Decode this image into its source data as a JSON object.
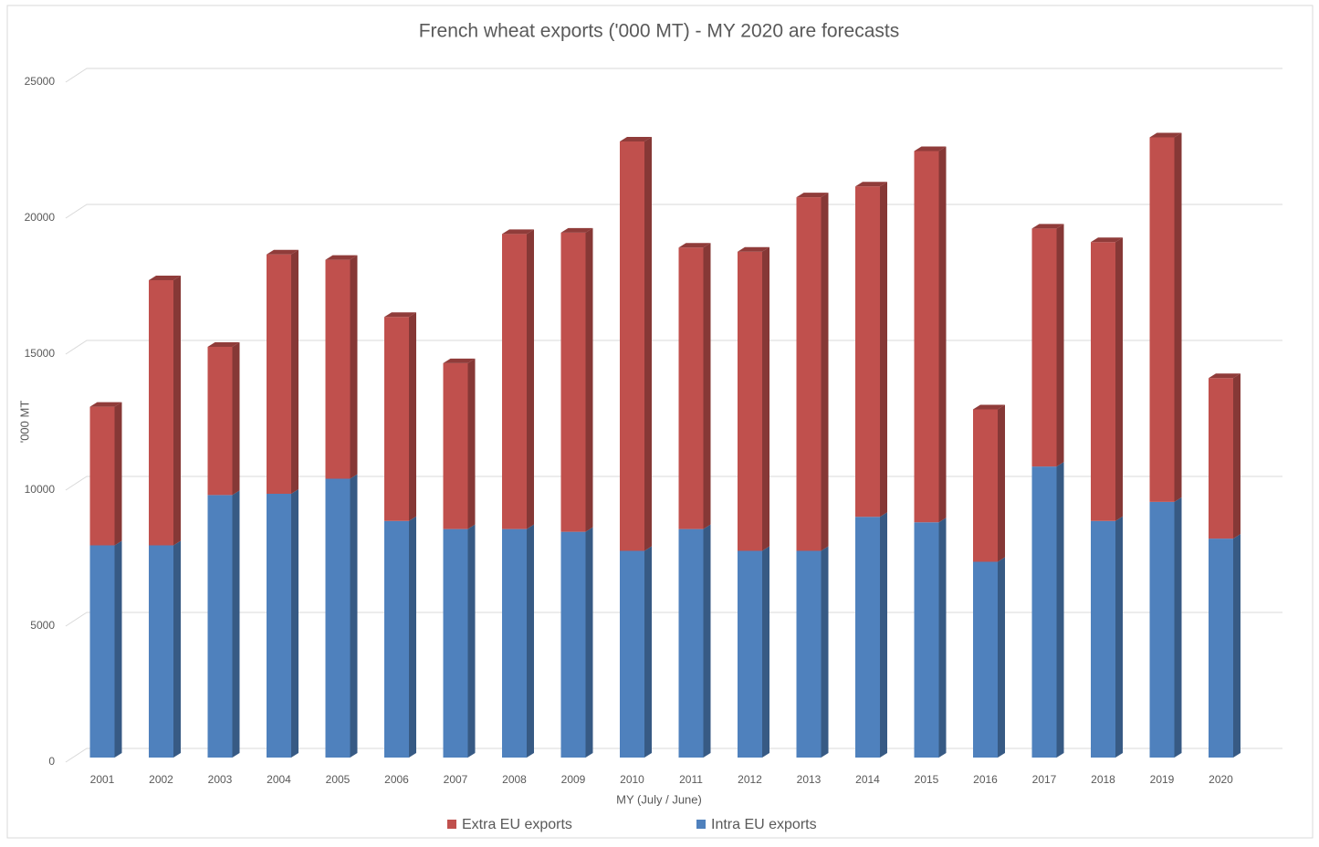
{
  "chart_data": {
    "type": "stacked_bar_3d",
    "title": "French wheat exports ('000 MT) - MY 2020 are forecasts",
    "x_label": "MY (July / June)",
    "y_label": "'000 MT",
    "categories": [
      "2001",
      "2002",
      "2003",
      "2004",
      "2005",
      "2006",
      "2007",
      "2008",
      "2009",
      "2010",
      "2011",
      "2012",
      "2013",
      "2014",
      "2015",
      "2016",
      "2017",
      "2018",
      "2019",
      "2020"
    ],
    "series": [
      {
        "name": "Intra EU exports",
        "color": "#4f81bd",
        "values": [
          7800,
          7800,
          9650,
          9700,
          10250,
          8700,
          8400,
          8400,
          8300,
          7600,
          8400,
          7600,
          7600,
          8850,
          8650,
          7200,
          10700,
          8700,
          9400,
          8050
        ]
      },
      {
        "name": "Extra EU exports",
        "color": "#c0504d",
        "values": [
          5100,
          9750,
          5450,
          8800,
          8050,
          7500,
          6100,
          10850,
          11000,
          15050,
          10350,
          11000,
          13000,
          12150,
          13650,
          5600,
          8750,
          10250,
          13400,
          5900
        ]
      }
    ],
    "ylim": [
      0,
      25000
    ],
    "yticks": [
      0,
      5000,
      10000,
      15000,
      20000,
      25000
    ],
    "grid": true,
    "legend": "bottom"
  }
}
